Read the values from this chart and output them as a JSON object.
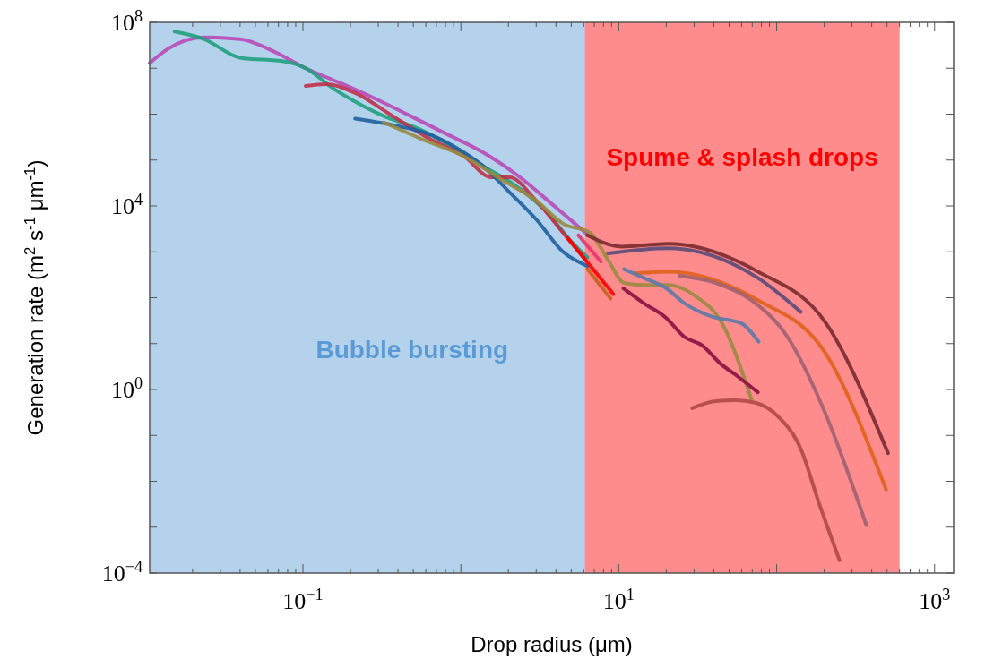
{
  "chart_data": {
    "type": "line",
    "xlabel": "Drop radius (μm)",
    "ylabel": "Generation rate (m$^{2}$ s$^{-1}$ μm$^{-1}$)",
    "log": "xy",
    "grid": false,
    "marker": "none",
    "line_style": "solid",
    "xlim": [
      0.0107,
      1320
    ],
    "ylim": [
      0.0001,
      100000000
    ],
    "xticks": [
      {
        "value": 0.02,
        "label": null
      },
      {
        "value": 0.03,
        "label": null
      },
      {
        "value": 0.04,
        "label": null
      },
      {
        "value": 0.05,
        "label": null
      },
      {
        "value": 0.06,
        "label": null
      },
      {
        "value": 0.07,
        "label": null
      },
      {
        "value": 0.08,
        "label": null
      },
      {
        "value": 0.09,
        "label": null
      },
      {
        "value": 0.1,
        "label": "10$^{−1}$"
      },
      {
        "value": 0.2,
        "label": null
      },
      {
        "value": 0.3,
        "label": null
      },
      {
        "value": 0.4,
        "label": null
      },
      {
        "value": 0.5,
        "label": null
      },
      {
        "value": 0.6,
        "label": null
      },
      {
        "value": 0.7,
        "label": null
      },
      {
        "value": 0.8,
        "label": null
      },
      {
        "value": 0.9,
        "label": null
      },
      {
        "value": 1,
        "label": null
      },
      {
        "value": 2,
        "label": null
      },
      {
        "value": 3,
        "label": null
      },
      {
        "value": 4,
        "label": null
      },
      {
        "value": 5,
        "label": null
      },
      {
        "value": 6,
        "label": null
      },
      {
        "value": 7,
        "label": null
      },
      {
        "value": 8,
        "label": null
      },
      {
        "value": 9,
        "label": null
      },
      {
        "value": 10,
        "label": "10$^{1}$"
      },
      {
        "value": 20,
        "label": null
      },
      {
        "value": 30,
        "label": null
      },
      {
        "value": 40,
        "label": null
      },
      {
        "value": 50,
        "label": null
      },
      {
        "value": 60,
        "label": null
      },
      {
        "value": 70,
        "label": null
      },
      {
        "value": 80,
        "label": null
      },
      {
        "value": 90,
        "label": null
      },
      {
        "value": 100,
        "label": null
      },
      {
        "value": 200,
        "label": null
      },
      {
        "value": 300,
        "label": null
      },
      {
        "value": 400,
        "label": null
      },
      {
        "value": 500,
        "label": null
      },
      {
        "value": 600,
        "label": null
      },
      {
        "value": 700,
        "label": null
      },
      {
        "value": 800,
        "label": null
      },
      {
        "value": 900,
        "label": null
      },
      {
        "value": 1000,
        "label": "10$^{3}$"
      }
    ],
    "yticks": [
      {
        "value": 0.0001,
        "label": "10$^{−4}$"
      },
      {
        "value": 0.001,
        "label": null
      },
      {
        "value": 0.01,
        "label": null
      },
      {
        "value": 0.1,
        "label": null
      },
      {
        "value": 1,
        "label": "10$^{0}$"
      },
      {
        "value": 10,
        "label": null
      },
      {
        "value": 100,
        "label": null
      },
      {
        "value": 1000,
        "label": null
      },
      {
        "value": 10000,
        "label": "10$^{4}$"
      },
      {
        "value": 100000,
        "label": null
      },
      {
        "value": 1000000,
        "label": null
      },
      {
        "value": 10000000,
        "label": null
      },
      {
        "value": 100000000,
        "label": "10$^{8}$"
      }
    ],
    "bands": [
      {
        "axis": "x",
        "from": 0.0107,
        "to": 6.1,
        "label": "Bubble bursting",
        "color": "#5b9bd5"
      },
      {
        "axis": "x",
        "from": 6.1,
        "to": 600,
        "label": "Spume & splash drops",
        "color": "#ff0000"
      }
    ],
    "series": [
      {
        "color": "#b84ab8",
        "x": [
          0.0107,
          0.0141,
          0.0237,
          0.04,
          0.0676,
          0.104,
          0.169,
          0.285,
          0.481,
          0.811,
          1.37,
          2.31,
          3.9,
          6.17
        ],
        "values": [
          13000000,
          27000000,
          47000000,
          43000000,
          22000000,
          10000000,
          4900000,
          2200000,
          910000,
          370000,
          150000,
          45000,
          10000,
          2600
        ]
      },
      {
        "color": "#20a080",
        "x": [
          0.0154,
          0.0237,
          0.04,
          0.077,
          0.104,
          0.158,
          0.219,
          0.325,
          0.548,
          0.811,
          1.37,
          2.31,
          3.42,
          5.07,
          6.33
        ],
        "values": [
          63000000,
          43000000,
          17000000,
          14000000,
          10000000,
          3500000,
          1800000,
          910000,
          470000,
          230000,
          76000,
          25000,
          8000,
          1600,
          760
        ]
      },
      {
        "color": "#c0304a",
        "x": [
          0.104,
          0.139,
          0.219,
          0.37,
          0.624,
          1.05,
          1.56,
          2.03,
          3,
          4.44,
          6.17
        ],
        "values": [
          4100000,
          4500000,
          2800000,
          910000,
          300000,
          120000,
          42000,
          42000,
          13000,
          2600,
          670
        ]
      },
      {
        "color": "#1f5fa0",
        "x": [
          0.214,
          0.37,
          0.624,
          0.925,
          1.37,
          2.03,
          3,
          4.44,
          6.33
        ],
        "values": [
          800000,
          580000,
          370000,
          190000,
          76000,
          20000,
          5100,
          1000,
          490
        ]
      },
      {
        "color": "#9a8a40",
        "x": [
          0.325,
          0.548,
          1.05,
          1.78,
          3,
          4.44,
          6.58,
          8.55,
          10.8,
          14.4,
          20.5,
          30.4,
          45,
          69.3
        ],
        "values": [
          660000,
          300000,
          120000,
          39000,
          13000,
          4100,
          2600,
          670,
          210,
          190,
          190,
          110,
          28,
          0.6
        ]
      },
      {
        "color": "#e8336f",
        "x": [
          5.55,
          7.7
        ],
        "values": [
          2300,
          610
        ]
      },
      {
        "color": "#ff0000",
        "x": [
          4.74,
          9.24
        ],
        "values": [
          2000,
          120
        ]
      },
      {
        "color": "#c86020",
        "x": [
          6.33,
          8.89
        ],
        "values": [
          420,
          96
        ]
      },
      {
        "color": "#7a2a30",
        "x": [
          6.33,
          10.4,
          20.5,
          76,
          205,
          507
        ],
        "values": [
          2300,
          1300,
          1500,
          370,
          28,
          0.041
        ]
      },
      {
        "color": "#5a4a7a",
        "x": [
          8.55,
          20.5,
          76,
          142
        ],
        "values": [
          920,
          1200,
          270,
          49
        ]
      },
      {
        "color": "#e0601a",
        "x": [
          12.7,
          20,
          76,
          203,
          493
        ],
        "values": [
          340,
          370,
          88,
          6.3,
          0.0066
        ]
      },
      {
        "color": "#a06070",
        "x": [
          24.3,
          41.1,
          69.3,
          117,
          197,
          370
        ],
        "values": [
          300,
          210,
          88,
          14,
          0.39,
          0.0011
        ]
      },
      {
        "color": "#5a7aa8",
        "x": [
          10.8,
          14.4,
          20,
          26,
          38.5,
          59.3,
          76.9
        ],
        "values": [
          420,
          270,
          160,
          76,
          39,
          28,
          11
        ]
      },
      {
        "color": "#8a1040",
        "x": [
          10.7,
          14.4,
          20,
          26,
          33.7,
          43.9,
          57,
          76
        ],
        "values": [
          160,
          76,
          36,
          14,
          9.2,
          3.7,
          1.9,
          0.87
        ]
      },
      {
        "color": "#b04848",
        "x": [
          29.2,
          41.1,
          54.8,
          74,
          103,
          142,
          185,
          250
        ],
        "values": [
          0.39,
          0.56,
          0.58,
          0.51,
          0.25,
          0.051,
          0.0034,
          0.00019
        ]
      }
    ]
  }
}
